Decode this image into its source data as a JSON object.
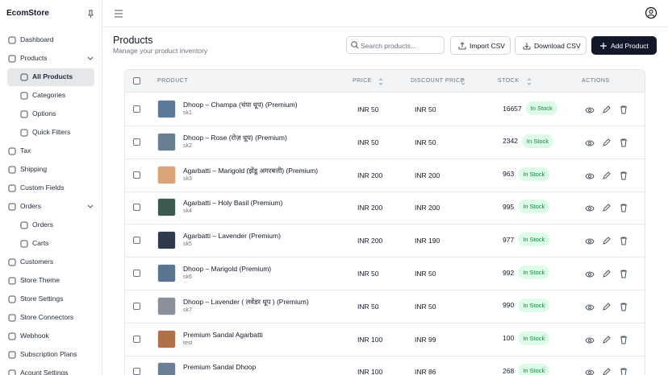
{
  "sidebar": {
    "brand": "EcomStore",
    "items": [
      {
        "label": "Dashboard"
      },
      {
        "label": "Products",
        "expand": true
      },
      {
        "label": "All Products",
        "sub": true,
        "active": true
      },
      {
        "label": "Categories",
        "sub": true
      },
      {
        "label": "Options",
        "sub": true
      },
      {
        "label": "Quick Filters",
        "sub": true
      },
      {
        "label": "Tax"
      },
      {
        "label": "Shipping"
      },
      {
        "label": "Custom Fields"
      },
      {
        "label": "Orders",
        "expand": true
      },
      {
        "label": "Orders",
        "sub": true
      },
      {
        "label": "Carts",
        "sub": true
      },
      {
        "label": "Customers"
      },
      {
        "label": "Store Theme"
      },
      {
        "label": "Store Settings"
      },
      {
        "label": "Store Connectors"
      },
      {
        "label": "Webhook"
      },
      {
        "label": "Subscription Plans"
      },
      {
        "label": "Acount Settings"
      }
    ]
  },
  "header": {
    "title": "Products",
    "subtitle": "Manage your product inventory",
    "search_placeholder": "Search products...",
    "buttons": [
      "Import CSV",
      "Download CSV",
      "Add Product"
    ]
  },
  "table": {
    "columns": [
      "PRODUCT",
      "PRICE",
      "DISCOUNT PRICE",
      "STOCK",
      "ACTIONS"
    ],
    "rows": [
      {
        "name": "Dhoop – Champa (चंपा धूप) (Premium)",
        "sku": "sk1",
        "price": "INR 50",
        "discount": "INR 50",
        "stock": 16657,
        "status": "In Stock",
        "img": "#5b7a9a"
      },
      {
        "name": "Dhoop – Rose (रोज़ धूप) (Premium)",
        "sku": "sk2",
        "price": "INR 50",
        "discount": "INR 50",
        "stock": 2342,
        "status": "In Stock",
        "img": "#6a7e92"
      },
      {
        "name": "Agarbatti – Marigold (झेंडू अगरबत्ती) (Premium)",
        "sku": "sk3",
        "price": "INR 200",
        "discount": "INR 200",
        "stock": 963,
        "status": "In Stock",
        "img": "#d9a47a"
      },
      {
        "name": "Agarbatti – Holy Basil (Premium)",
        "sku": "sk4",
        "price": "INR 200",
        "discount": "INR 200",
        "stock": 995,
        "status": "In Stock",
        "img": "#3d5a52"
      },
      {
        "name": "Agarbatti – Lavender (Premium)",
        "sku": "sk5",
        "price": "INR 200",
        "discount": "INR 190",
        "stock": 977,
        "status": "In Stock",
        "img": "#2f3a4c"
      },
      {
        "name": "Dhoop – Marigold (Premium)",
        "sku": "sk6",
        "price": "INR 50",
        "discount": "INR 50",
        "stock": 992,
        "status": "In Stock",
        "img": "#5a7590"
      },
      {
        "name": "Dhoop – Lavender ( लवेंडर धूप ) (Premium)",
        "sku": "sk7",
        "price": "INR 50",
        "discount": "INR 50",
        "stock": 990,
        "status": "In Stock",
        "img": "#8a8f99"
      },
      {
        "name": "Premium Sandal Agarbatti",
        "sku": "test",
        "price": "INR 100",
        "discount": "INR 99",
        "stock": 100,
        "status": "In Stock",
        "img": "#b0704a"
      },
      {
        "name": "Premium Sandal Dhoop",
        "price": "INR 100",
        "discount": "INR 86",
        "stock": 268,
        "status": "In Stock",
        "img": "#6d7f95"
      }
    ]
  }
}
